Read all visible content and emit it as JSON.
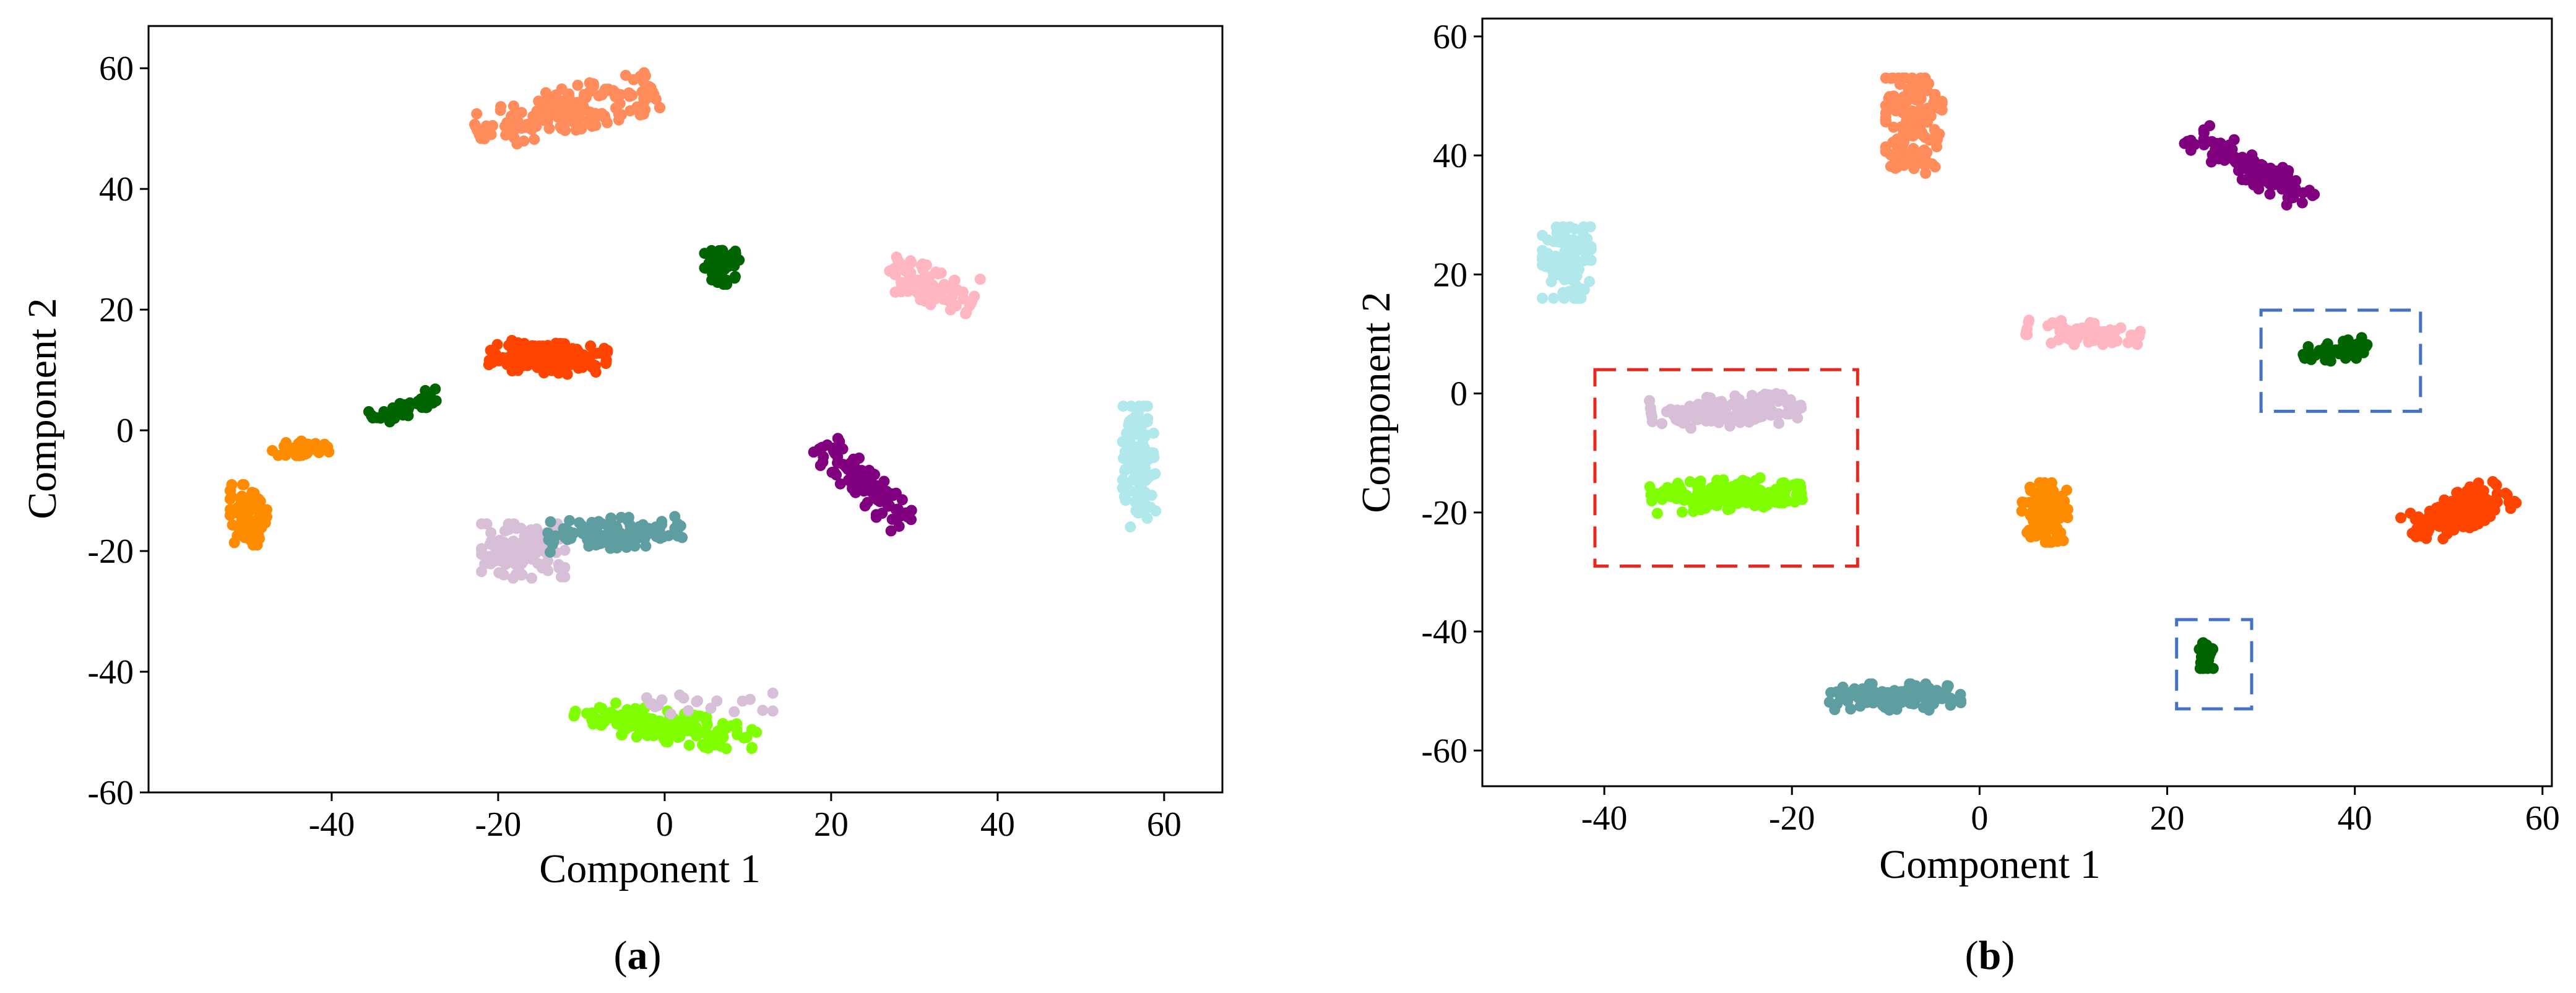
{
  "chart_data": [
    {
      "type": "scatter",
      "panel": "(a)",
      "caption_prefix": "(",
      "caption_letter": "a",
      "caption_suffix": ")",
      "xlabel": "Component 1",
      "ylabel": "Component 2",
      "xlim": [
        -62,
        67
      ],
      "ylim": [
        -60,
        67
      ],
      "xticks": [
        "-40",
        "-20",
        "0",
        "20",
        "40",
        "60"
      ],
      "xtick_values": [
        -40,
        -20,
        0,
        20,
        40,
        60
      ],
      "yticks": [
        "60",
        "40",
        "20",
        "0",
        "-20",
        "-40",
        "-60"
      ],
      "ytick_values": [
        60,
        40,
        20,
        0,
        -20,
        -40,
        -60
      ],
      "grid": false,
      "clusters": [
        {
          "color": "#FF8C5A",
          "center": [
            -12,
            53
          ],
          "spread": [
            11,
            3.5
          ],
          "angle_deg": 18,
          "count": 180
        },
        {
          "color": "#006400",
          "center": [
            7,
            27
          ],
          "spread": [
            2.2,
            2.8
          ],
          "angle_deg": 0,
          "count": 60
        },
        {
          "color": "#FFB6C1",
          "center": [
            32,
            24
          ],
          "spread": [
            5.5,
            3
          ],
          "angle_deg": -20,
          "count": 90
        },
        {
          "color": "#FF4500",
          "center": [
            -14,
            12
          ],
          "spread": [
            7,
            2.5
          ],
          "angle_deg": -5,
          "count": 150
        },
        {
          "color": "#006400",
          "center": [
            -31,
            4
          ],
          "spread": [
            4.5,
            1.5
          ],
          "angle_deg": 25,
          "count": 45
        },
        {
          "color": "#FF8C00",
          "center": [
            -44,
            -3
          ],
          "spread": [
            3.5,
            1.2
          ],
          "angle_deg": 10,
          "count": 45
        },
        {
          "color": "#FF8C00",
          "center": [
            -50,
            -14
          ],
          "spread": [
            2.2,
            5
          ],
          "angle_deg": 0,
          "count": 90
        },
        {
          "color": "#B0E8EC",
          "center": [
            57,
            -6
          ],
          "spread": [
            2,
            10
          ],
          "angle_deg": 0,
          "count": 110
        },
        {
          "color": "#800080",
          "center": [
            24,
            -9
          ],
          "spread": [
            8,
            2.2
          ],
          "angle_deg": -52,
          "count": 110
        },
        {
          "color": "#D8BFD8",
          "center": [
            -17,
            -20
          ],
          "spread": [
            5,
            4.5
          ],
          "angle_deg": 0,
          "count": 110
        },
        {
          "color": "#5F9EA0",
          "center": [
            -6,
            -17
          ],
          "spread": [
            8,
            2.5
          ],
          "angle_deg": 5,
          "count": 110
        },
        {
          "color": "#7FFF00",
          "center": [
            0,
            -49
          ],
          "spread": [
            11,
            2.5
          ],
          "angle_deg": -12,
          "count": 150
        },
        {
          "color": "#D8BFD8",
          "center": [
            5,
            -45
          ],
          "spread": [
            8,
            2
          ],
          "angle_deg": 0,
          "count": 20
        }
      ]
    },
    {
      "type": "scatter",
      "panel": "(b)",
      "caption_prefix": "(",
      "caption_letter": "b",
      "caption_suffix": ")",
      "xlabel": "Component 1",
      "ylabel": "Component 2",
      "xlim": [
        -53,
        61
      ],
      "ylim": [
        -66,
        63
      ],
      "xticks": [
        "-40",
        "-20",
        "0",
        "20",
        "40",
        "60"
      ],
      "xtick_values": [
        -40,
        -20,
        0,
        20,
        40,
        60
      ],
      "yticks": [
        "60",
        "40",
        "20",
        "0",
        "-20",
        "-40",
        "-60"
      ],
      "ytick_values": [
        60,
        40,
        20,
        0,
        -20,
        -40,
        -60
      ],
      "grid": false,
      "clusters": [
        {
          "color": "#FF8C5A",
          "center": [
            -7,
            45
          ],
          "spread": [
            3,
            8
          ],
          "angle_deg": 0,
          "count": 140
        },
        {
          "color": "#800080",
          "center": [
            29,
            38
          ],
          "spread": [
            8,
            2.2
          ],
          "angle_deg": -42,
          "count": 120
        },
        {
          "color": "#B0E8EC",
          "center": [
            -44,
            22
          ],
          "spread": [
            2.6,
            6
          ],
          "angle_deg": 0,
          "count": 110
        },
        {
          "color": "#FFB6C1",
          "center": [
            11,
            10
          ],
          "spread": [
            6,
            2
          ],
          "angle_deg": -8,
          "count": 70
        },
        {
          "color": "#006400",
          "center": [
            38,
            7
          ],
          "spread": [
            3.5,
            1.6
          ],
          "angle_deg": 15,
          "count": 55
        },
        {
          "color": "#D8BFD8",
          "center": [
            -27,
            -3
          ],
          "spread": [
            8,
            2.5
          ],
          "angle_deg": 5,
          "count": 130
        },
        {
          "color": "#7FFF00",
          "center": [
            -27,
            -17
          ],
          "spread": [
            8,
            2.5
          ],
          "angle_deg": 5,
          "count": 170
        },
        {
          "color": "#FF8C00",
          "center": [
            7,
            -20
          ],
          "spread": [
            2.5,
            5
          ],
          "angle_deg": 0,
          "count": 100
        },
        {
          "color": "#FF4500",
          "center": [
            51,
            -20
          ],
          "spread": [
            6,
            2.8
          ],
          "angle_deg": 35,
          "count": 170
        },
        {
          "color": "#006400",
          "center": [
            24,
            -44
          ],
          "spread": [
            0.9,
            2.2
          ],
          "angle_deg": 0,
          "count": 35
        },
        {
          "color": "#5F9EA0",
          "center": [
            -9,
            -51
          ],
          "spread": [
            7,
            2.2
          ],
          "angle_deg": 0,
          "count": 120
        }
      ],
      "highlight_boxes": [
        {
          "style": "dashed",
          "color": "#E8281E",
          "x": [
            -41,
            -13
          ],
          "y": [
            4,
            -29
          ]
        },
        {
          "style": "dashed",
          "color": "#4472C4",
          "x": [
            30,
            47
          ],
          "y": [
            14,
            -3
          ]
        },
        {
          "style": "dashed",
          "color": "#4472C4",
          "x": [
            21,
            29
          ],
          "y": [
            -38,
            -53
          ]
        }
      ]
    }
  ]
}
